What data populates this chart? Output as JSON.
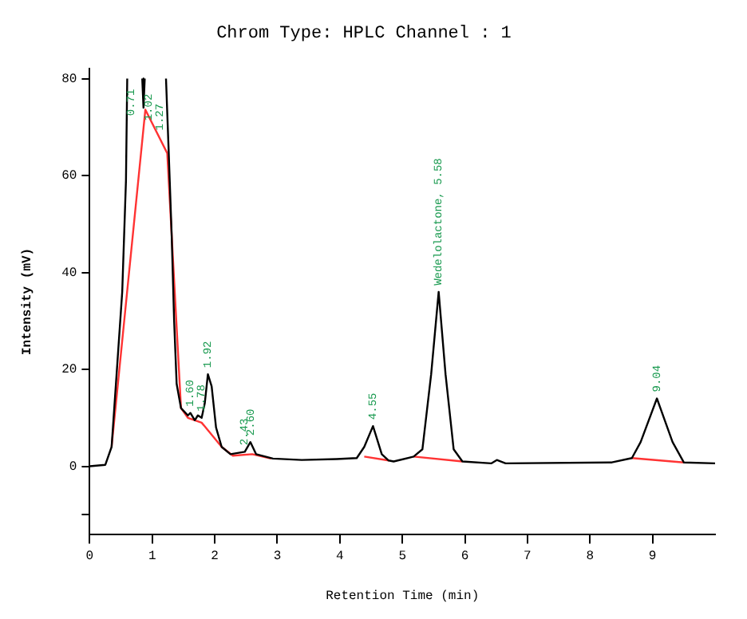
{
  "chart_data": {
    "type": "line",
    "title": "Chrom Type: HPLC Channel : 1",
    "xlabel": "Retention Time (min)",
    "ylabel": "Intensity (mV)",
    "xlim": [
      0,
      10
    ],
    "ylim": [
      -14,
      82
    ],
    "xticks": [
      0,
      1,
      2,
      3,
      4,
      5,
      6,
      7,
      8,
      9
    ],
    "yticks": [
      {
        "value": -10,
        "label": null
      },
      0,
      20,
      40,
      60,
      80
    ],
    "grid": false,
    "legend": false,
    "marker": "none",
    "line_style": "solid",
    "series": [
      {
        "color": "#000000",
        "x": [
          0,
          0.25,
          0.35,
          0.43,
          0.52,
          0.58,
          0.6,
          0.7,
          0.84,
          0.86,
          0.88,
          1.0,
          1.22,
          1.26,
          1.31,
          1.35,
          1.39,
          1.46,
          1.57,
          1.61,
          1.68,
          1.73,
          1.79,
          1.84,
          1.89,
          1.95,
          2.02,
          2.11,
          2.25,
          2.48,
          2.57,
          2.66,
          2.93,
          3.39,
          3.95,
          4.27,
          4.39,
          4.53,
          4.67,
          4.78,
          4.86,
          5.18,
          5.32,
          5.46,
          5.58,
          5.69,
          5.82,
          5.96,
          6.42,
          6.51,
          6.65,
          8.35,
          8.67,
          8.81,
          9.07,
          9.32,
          9.5,
          10
        ],
        "values": [
          0,
          0.3,
          4,
          19,
          36,
          59,
          80,
          null,
          80,
          74,
          80,
          null,
          80,
          66,
          48,
          30,
          17,
          12,
          10.5,
          11,
          9.5,
          10.5,
          10,
          13,
          19,
          16.5,
          8,
          4,
          2.5,
          3,
          5,
          2.5,
          1.6,
          1.3,
          1.5,
          1.7,
          4,
          8.3,
          2.5,
          1.2,
          1,
          2,
          3.5,
          19,
          36,
          19,
          3.5,
          1,
          0.6,
          1.3,
          0.6,
          0.8,
          1.7,
          5,
          14,
          5,
          0.8,
          0.6
        ]
      },
      {
        "color": "#ff3333",
        "x": [
          0.35,
          0.89,
          1.24,
          1.46,
          1.57,
          1.68,
          1.79,
          2.11,
          2.29,
          2.6,
          2.9,
          3.0,
          4.39,
          4.78,
          5.1,
          5.18,
          5.96,
          7.0,
          8.67,
          9.5
        ],
        "values": [
          4,
          73.6,
          64.6,
          12,
          10,
          9.5,
          9,
          4,
          2.2,
          2.5,
          1.6,
          null,
          2,
          1.2,
          null,
          2,
          1,
          null,
          1.7,
          0.8
        ]
      }
    ],
    "annotations": [
      {
        "text": "0.71",
        "x": 0.66,
        "y": 71
      },
      {
        "text": "1.02",
        "x": 0.94,
        "y": 70
      },
      {
        "text": "1.27",
        "x": 1.12,
        "y": 68
      },
      {
        "text": "1.60",
        "x": 1.61,
        "y": 11
      },
      {
        "text": "1.78",
        "x": 1.79,
        "y": 10
      },
      {
        "text": "1.92",
        "x": 1.89,
        "y": 19
      },
      {
        "text": "2.43",
        "x": 2.48,
        "y": 3
      },
      {
        "text": "2.60",
        "x": 2.57,
        "y": 5
      },
      {
        "text": "4.55",
        "x": 4.53,
        "y": 8.3
      },
      {
        "text": "Wedelolactone, 5.58",
        "x": 5.58,
        "y": 36
      },
      {
        "text": "9.04",
        "x": 9.07,
        "y": 14
      }
    ]
  }
}
